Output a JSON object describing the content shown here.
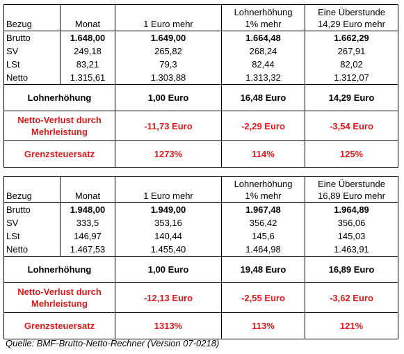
{
  "tables": [
    {
      "header": {
        "bezug": "Bezug",
        "monat": "Monat",
        "euro_mehr": "1 Euro mehr",
        "lohn_line1": "Lohnerhöhung",
        "lohn_line2": "1% mehr",
        "ueber_line1": "Eine Überstunde",
        "ueber_line2": "14,29 Euro mehr"
      },
      "rows": [
        {
          "label": "Brutto",
          "values": [
            "1.648,00",
            "1.649,00",
            "1.664,48",
            "1.662,29"
          ],
          "bold": true
        },
        {
          "label": "SV",
          "values": [
            "249,18",
            "265,82",
            "268,24",
            "267,91"
          ],
          "bold": false
        },
        {
          "label": "LSt",
          "values": [
            "83,21",
            "79,3",
            "82,44",
            "82,02"
          ],
          "bold": false
        },
        {
          "label": "Netto",
          "values": [
            "1.315,61",
            "1.303,88",
            "1.313,32",
            "1.312,07"
          ],
          "bold": false
        }
      ],
      "lohnerhoehung": {
        "label": "Lohnerhöhung",
        "values": [
          "1,00 Euro",
          "16,48 Euro",
          "14,29 Euro"
        ]
      },
      "netto_verlust": {
        "label_line1": "Netto-Verlust durch",
        "label_line2": "Mehrleistung",
        "values": [
          "-11,73 Euro",
          "-2,29 Euro",
          "-3,54 Euro"
        ]
      },
      "grenzsteuersatz": {
        "label": "Grenzsteuersatz",
        "values": [
          "1273%",
          "114%",
          "125%"
        ]
      }
    },
    {
      "header": {
        "bezug": "Bezug",
        "monat": "Monat",
        "euro_mehr": "1 Euro mehr",
        "lohn_line1": "Lohnerhöhung",
        "lohn_line2": "1% mehr",
        "ueber_line1": "Eine Überstunde",
        "ueber_line2": "16,89 Euro mehr"
      },
      "rows": [
        {
          "label": "Brutto",
          "values": [
            "1.948,00",
            "1.949,00",
            "1.967,48",
            "1.964,89"
          ],
          "bold": true
        },
        {
          "label": "SV",
          "values": [
            "333,5",
            "353,16",
            "356,42",
            "356,06"
          ],
          "bold": false
        },
        {
          "label": "LSt",
          "values": [
            "146,97",
            "140,44",
            "145,6",
            "145,03"
          ],
          "bold": false
        },
        {
          "label": "Netto",
          "values": [
            "1.467,53",
            "1.455,40",
            "1.464,98",
            "1.463,91"
          ],
          "bold": false
        }
      ],
      "lohnerhoehung": {
        "label": "Lohnerhöhung",
        "values": [
          "1,00 Euro",
          "19,48 Euro",
          "16,89 Euro"
        ]
      },
      "netto_verlust": {
        "label_line1": "Netto-Verlust durch",
        "label_line2": "Mehrleistung",
        "values": [
          "-12,13 Euro",
          "-2,55 Euro",
          "-3,62 Euro"
        ]
      },
      "grenzsteuersatz": {
        "label": "Grenzsteuersatz",
        "values": [
          "1313%",
          "113%",
          "121%"
        ]
      }
    }
  ],
  "source": "Quelle: BMF-Brutto-Netto-Rechner (Version 07-0218)",
  "colors": {
    "highlight_red": "#e0191a",
    "border": "#000000"
  }
}
